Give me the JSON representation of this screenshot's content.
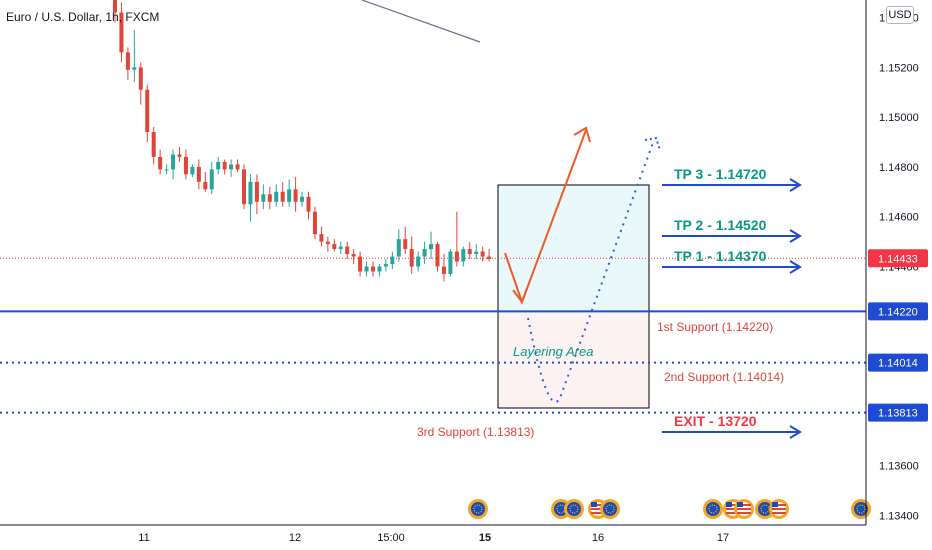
{
  "chart_data": {
    "type": "candlestick",
    "symbol_title": "Euro / U.S. Dollar, 1h, FXCM",
    "currency_button": "USD",
    "y_axis": {
      "ticks": [
        "1.15400",
        "1.15200",
        "1.15000",
        "1.14800",
        "1.14600",
        "1.14400",
        "1.13600",
        "1.13400"
      ],
      "tick_values": [
        1.154,
        1.152,
        1.15,
        1.148,
        1.146,
        1.144,
        1.136,
        1.134
      ],
      "range": [
        1.1333,
        1.1547
      ]
    },
    "x_axis": {
      "ticks": [
        "11",
        "12",
        "15:00",
        "15",
        "16",
        "17"
      ],
      "tick_bold": [
        false,
        false,
        false,
        true,
        false,
        false
      ]
    },
    "price_labels": [
      {
        "text": "1.14433",
        "value": 1.14433,
        "style": "current",
        "color": "#f23645"
      },
      {
        "text": "1.14220",
        "value": 1.1422,
        "style": "solid",
        "color": "#1e4bd2"
      },
      {
        "text": "1.14014",
        "value": 1.14014,
        "style": "dotted",
        "color": "#1e4bd2"
      },
      {
        "text": "1.13813",
        "value": 1.13813,
        "style": "dotted",
        "color": "#1e4bd2"
      }
    ],
    "support_labels": [
      {
        "text": "1st Support (1.14220)",
        "color": "#e0453a"
      },
      {
        "text": "2nd Support (1.14014)",
        "color": "#e0453a"
      },
      {
        "text": "3rd Support (1.13813)",
        "color": "#e0453a"
      }
    ],
    "targets": [
      {
        "text": "TP 3 - 1.14720",
        "value": 1.1472,
        "color": "#089981"
      },
      {
        "text": "TP 2 - 1.14520",
        "value": 1.1452,
        "color": "#089981"
      },
      {
        "text": "TP 1 - 1.14370",
        "value": 1.1437,
        "color": "#089981"
      },
      {
        "text": "EXIT - 13720",
        "value": 1.1372,
        "color": "#f23645"
      }
    ],
    "zone_label": "Layering Area",
    "colors": {
      "up": "#26a69a",
      "down": "#e0453a",
      "zone_top": "#e9f8fa",
      "zone_bottom": "#fdf2f2",
      "line": "#1e4bd2",
      "arrow": "#f05a28",
      "dotted_arrow": "#2f5fd0"
    },
    "candles": [
      [
        1.1551,
        1.1556,
        1.1538,
        1.1542
      ],
      [
        1.1542,
        1.1546,
        1.1522,
        1.1526
      ],
      [
        1.1526,
        1.1528,
        1.1515,
        1.1519
      ],
      [
        1.1519,
        1.1535,
        1.1514,
        1.152
      ],
      [
        1.152,
        1.1522,
        1.1505,
        1.1511
      ],
      [
        1.1511,
        1.1513,
        1.149,
        1.1494
      ],
      [
        1.1494,
        1.1496,
        1.1481,
        1.1484
      ],
      [
        1.1484,
        1.1487,
        1.1477,
        1.1479
      ],
      [
        1.1479,
        1.1481,
        1.1477,
        1.1479
      ],
      [
        1.1479,
        1.1487,
        1.1475,
        1.1485
      ],
      [
        1.1485,
        1.1488,
        1.1482,
        1.1484
      ],
      [
        1.1484,
        1.1487,
        1.1475,
        1.1477
      ],
      [
        1.1477,
        1.1481,
        1.1476,
        1.148
      ],
      [
        1.148,
        1.1483,
        1.1471,
        1.1474
      ],
      [
        1.1474,
        1.1478,
        1.147,
        1.1471
      ],
      [
        1.1471,
        1.1482,
        1.1469,
        1.1479
      ],
      [
        1.1479,
        1.1484,
        1.1477,
        1.1482
      ],
      [
        1.1482,
        1.1483,
        1.1477,
        1.1479
      ],
      [
        1.1479,
        1.1483,
        1.1476,
        1.1481
      ],
      [
        1.1481,
        1.1483,
        1.1478,
        1.1479
      ],
      [
        1.1479,
        1.1481,
        1.1463,
        1.1465
      ],
      [
        1.1465,
        1.1477,
        1.1458,
        1.1474
      ],
      [
        1.1474,
        1.1477,
        1.1461,
        1.1466
      ],
      [
        1.1466,
        1.1473,
        1.1463,
        1.1469
      ],
      [
        1.1469,
        1.1472,
        1.1463,
        1.1466
      ],
      [
        1.1466,
        1.1473,
        1.1464,
        1.147
      ],
      [
        1.147,
        1.1474,
        1.1464,
        1.1466
      ],
      [
        1.1466,
        1.1475,
        1.1464,
        1.1471
      ],
      [
        1.1471,
        1.1476,
        1.1462,
        1.1466
      ],
      [
        1.1466,
        1.147,
        1.1464,
        1.1468
      ],
      [
        1.1468,
        1.147,
        1.1459,
        1.1462
      ],
      [
        1.1462,
        1.1464,
        1.1451,
        1.1453
      ],
      [
        1.1453,
        1.1456,
        1.1448,
        1.145
      ],
      [
        1.145,
        1.1452,
        1.1446,
        1.1449
      ],
      [
        1.1449,
        1.1451,
        1.1446,
        1.1447
      ],
      [
        1.1447,
        1.145,
        1.1445,
        1.1448
      ],
      [
        1.1448,
        1.145,
        1.1443,
        1.1445
      ],
      [
        1.1445,
        1.1447,
        1.1441,
        1.1444
      ],
      [
        1.1444,
        1.1446,
        1.1436,
        1.1438
      ],
      [
        1.1438,
        1.1442,
        1.1436,
        1.144
      ],
      [
        1.144,
        1.1442,
        1.1436,
        1.1438
      ],
      [
        1.1438,
        1.1441,
        1.1436,
        1.144
      ],
      [
        1.144,
        1.1443,
        1.1438,
        1.1441
      ],
      [
        1.1441,
        1.1446,
        1.1439,
        1.1444
      ],
      [
        1.1444,
        1.1455,
        1.1442,
        1.1451
      ],
      [
        1.1451,
        1.1456,
        1.1445,
        1.1447
      ],
      [
        1.1447,
        1.1452,
        1.1437,
        1.144
      ],
      [
        1.144,
        1.1446,
        1.1438,
        1.1444
      ],
      [
        1.1444,
        1.145,
        1.1441,
        1.1447
      ],
      [
        1.1447,
        1.1454,
        1.1443,
        1.1449
      ],
      [
        1.1449,
        1.145,
        1.1438,
        1.144
      ],
      [
        1.144,
        1.1445,
        1.1434,
        1.1437
      ],
      [
        1.1437,
        1.1447,
        1.1436,
        1.1446
      ],
      [
        1.1446,
        1.1462,
        1.144,
        1.1442
      ],
      [
        1.1442,
        1.1448,
        1.144,
        1.1447
      ],
      [
        1.1447,
        1.145,
        1.1443,
        1.1445
      ],
      [
        1.1445,
        1.1449,
        1.1443,
        1.1446
      ],
      [
        1.1446,
        1.1448,
        1.1442,
        1.1444
      ],
      [
        1.1444,
        1.1447,
        1.1442,
        1.1443
      ]
    ]
  }
}
